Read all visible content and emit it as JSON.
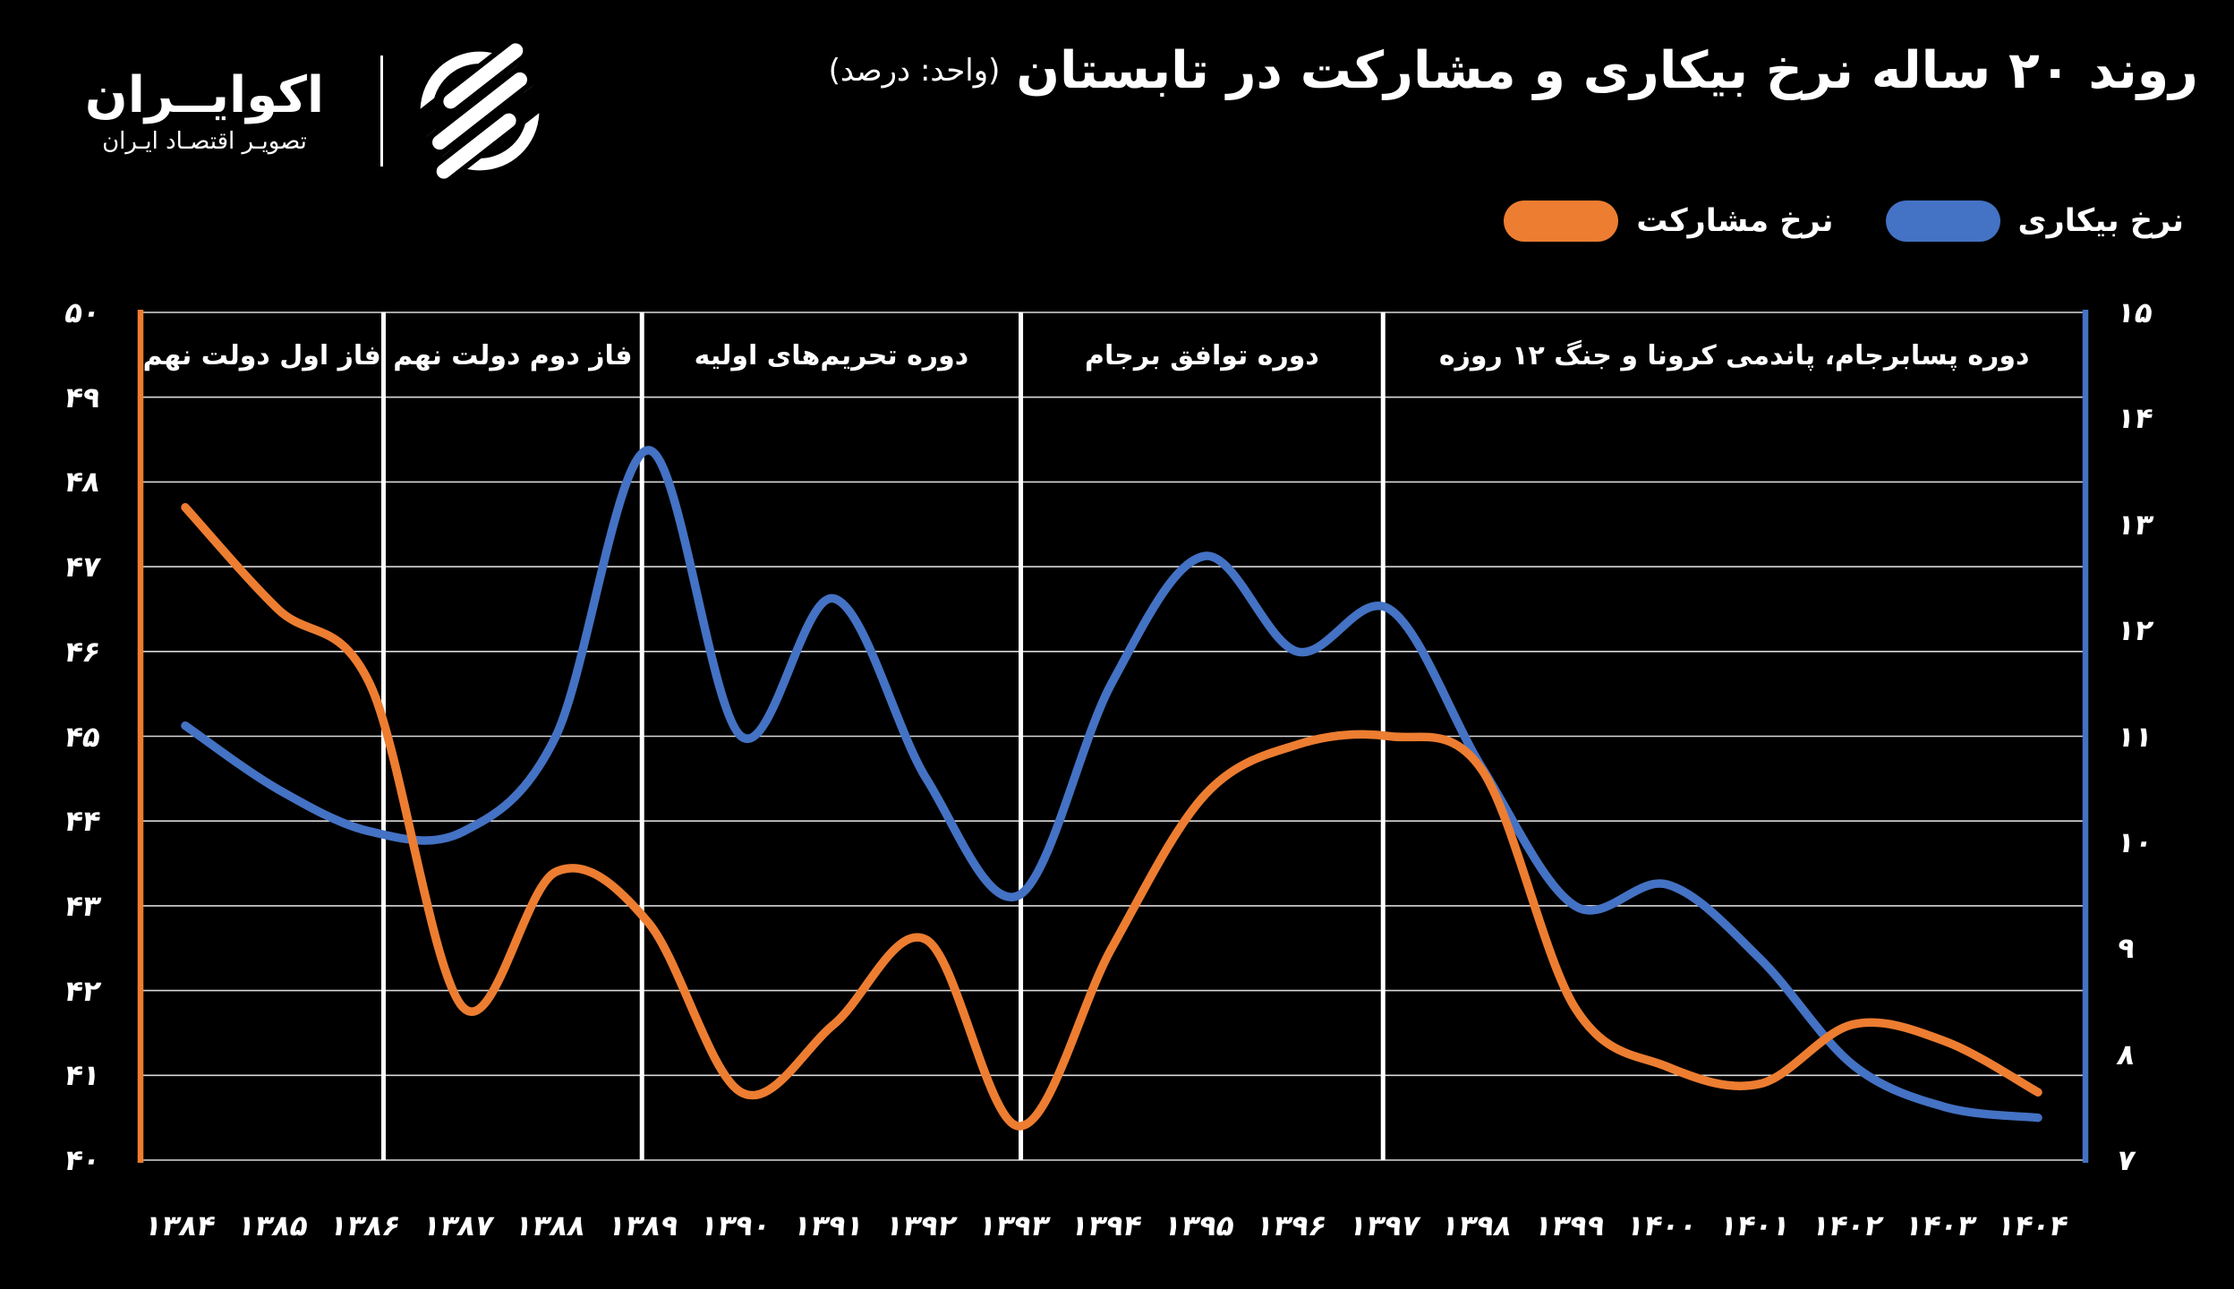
{
  "header": {
    "brand_name": "اکوایــران",
    "brand_tagline": "تصویـر اقتصـاد ایـران",
    "title": "روند ۲۰ ساله نرخ بیکاری و مشارکت در تابستان",
    "title_unit": "(واحد: درصد)"
  },
  "legend": [
    {
      "label": "نرخ مشارکت",
      "color": "#ED7D31"
    },
    {
      "label": "نرخ بیکاری",
      "color": "#4472C4"
    }
  ],
  "chart_data": {
    "type": "line",
    "title": "روند ۲۰ ساله نرخ بیکاری و مشارکت در تابستان (واحد: درصد)",
    "background": "#000000",
    "grid": true,
    "legend_position": "top-right",
    "categories": [
      "۱۳۸۴",
      "۱۳۸۵",
      "۱۳۸۶",
      "۱۳۸۷",
      "۱۳۸۸",
      "۱۳۸۹",
      "۱۳۹۰",
      "۱۳۹۱",
      "۱۳۹۲",
      "۱۳۹۳",
      "۱۳۹۴",
      "۱۳۹۵",
      "۱۳۹۶",
      "۱۳۹۷",
      "۱۳۹۸",
      "۱۳۹۹",
      "۱۴۰۰",
      "۱۴۰۱",
      "۱۴۰۲",
      "۱۴۰۳",
      "۱۴۰۴"
    ],
    "categories_western": [
      1384,
      1385,
      1386,
      1387,
      1388,
      1389,
      1390,
      1391,
      1392,
      1393,
      1394,
      1395,
      1396,
      1397,
      1398,
      1399,
      1400,
      1401,
      1402,
      1403,
      1404
    ],
    "series": [
      {
        "name": "نرخ بیکاری",
        "axis": "right",
        "color": "#4472C4",
        "values": [
          11.1,
          10.5,
          10.1,
          10.1,
          11.0,
          13.7,
          11.0,
          12.3,
          10.6,
          9.5,
          11.5,
          12.7,
          11.8,
          12.2,
          10.7,
          9.4,
          9.6,
          8.9,
          7.9,
          7.5,
          7.4
        ]
      },
      {
        "name": "نرخ مشارکت",
        "axis": "left",
        "color": "#ED7D31",
        "values": [
          47.7,
          46.5,
          45.6,
          41.8,
          43.4,
          42.8,
          40.8,
          41.6,
          42.6,
          40.4,
          42.5,
          44.3,
          44.9,
          45.0,
          44.6,
          41.8,
          41.1,
          40.9,
          41.6,
          41.4,
          40.8
        ]
      }
    ],
    "left_axis": {
      "min": 40,
      "max": 50,
      "color": "#ED7D31",
      "ticks": [
        "۵۰",
        "۴۹",
        "۴۸",
        "۴۷",
        "۴۶",
        "۴۵",
        "۴۴",
        "۴۳",
        "۴۲",
        "۴۱",
        "۴۰"
      ]
    },
    "right_axis": {
      "min": 7,
      "max": 15,
      "color": "#4472C4",
      "ticks": [
        "۱۵",
        "۱۴",
        "۱۳",
        "۱۲",
        "۱۱",
        "۱۰",
        "۹",
        "۸",
        "۷"
      ]
    },
    "period_dividers_at_index": [
      2.14,
      4.93,
      9.02,
      12.93
    ],
    "periods": [
      "فاز اول دولت نهم",
      "فاز دوم دولت نهم",
      "دوره تحریم‌های اولیه",
      "دوره توافق برجام",
      "دوره پسابرجام، پاندمی کرونا و جنگ ۱۲ روزه"
    ],
    "gridline_color": "#D9D9D9",
    "divider_color": "#FFFFFF"
  }
}
